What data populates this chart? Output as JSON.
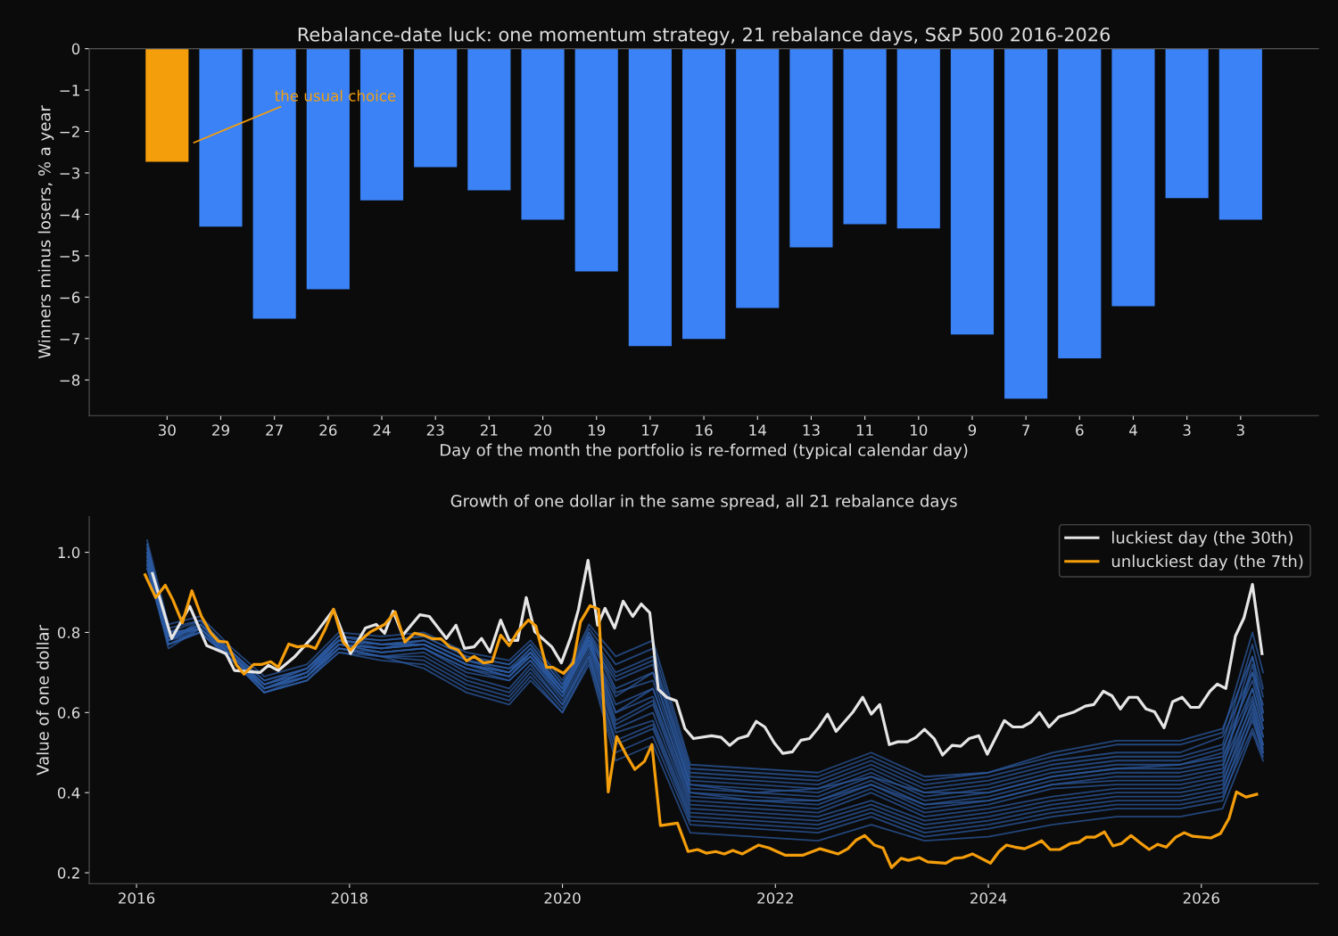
{
  "chart_data": [
    {
      "type": "bar",
      "title": "Rebalance-date luck: one momentum strategy, 21 rebalance days, S&P 500 2016-2026",
      "xlabel": "Day of the month the portfolio is re-formed (typical calendar day)",
      "ylabel": "Winners minus losers, % a year",
      "categories": [
        "30",
        "29",
        "27",
        "26",
        "24",
        "23",
        "21",
        "20",
        "19",
        "17",
        "16",
        "14",
        "13",
        "11",
        "10",
        "9",
        "7",
        "6",
        "4",
        "3",
        "3"
      ],
      "values": [
        -2.73,
        -4.3,
        -6.52,
        -5.81,
        -3.66,
        -2.86,
        -3.42,
        -4.13,
        -5.38,
        -7.18,
        -7.01,
        -6.26,
        -4.8,
        -4.24,
        -4.34,
        -6.9,
        -8.45,
        -7.48,
        -6.22,
        -3.61,
        -4.13
      ],
      "colors": [
        "#f59e0b",
        "#3b82f6",
        "#3b82f6",
        "#3b82f6",
        "#3b82f6",
        "#3b82f6",
        "#3b82f6",
        "#3b82f6",
        "#3b82f6",
        "#3b82f6",
        "#3b82f6",
        "#3b82f6",
        "#3b82f6",
        "#3b82f6",
        "#3b82f6",
        "#3b82f6",
        "#3b82f6",
        "#3b82f6",
        "#3b82f6",
        "#3b82f6",
        "#3b82f6"
      ],
      "ylim": [
        -8.86,
        0
      ],
      "yticks": [
        0,
        {
          "value": -1,
          "label": "−1"
        },
        {
          "value": -2,
          "label": "−2"
        },
        {
          "value": -3,
          "label": "−3"
        },
        {
          "value": -4,
          "label": "−4"
        },
        {
          "value": -5,
          "label": "−5"
        },
        {
          "value": -6,
          "label": "−6"
        },
        {
          "value": -7,
          "label": "−7"
        },
        {
          "value": -8,
          "label": "−8"
        }
      ],
      "annotations": [
        "the usual choice"
      ],
      "grid": false,
      "legend": false
    },
    {
      "type": "line",
      "title": "Growth of one dollar in the same spread, all 21 rebalance days",
      "ylabel": "Value of one dollar",
      "xlim": [
        2015.556,
        2027.1
      ],
      "xticks": [
        2016,
        2018,
        2020,
        2022,
        2024,
        2026
      ],
      "ylim": [
        0.173,
        1.089
      ],
      "yticks": [
        0.2,
        0.4,
        0.6,
        0.8,
        {
          "value": 1,
          "label": "1.0"
        }
      ],
      "grid": false,
      "legend": "top right",
      "x": [
        2016.1,
        2016.3,
        2016.6,
        2016.9,
        2017.2,
        2017.6,
        2017.9,
        2018.3,
        2018.7,
        2019.1,
        2019.5,
        2019.7,
        2020.0,
        2020.25,
        2020.5,
        2020.85,
        2021.2,
        2021.8,
        2022.4,
        2022.9,
        2023.4,
        2024.0,
        2024.6,
        2025.2,
        2025.8,
        2026.2,
        2026.48,
        2026.58
      ],
      "series": [
        {
          "color": "#2c5aa0",
          "values": [
            1.03,
            0.82,
            0.84,
            0.76,
            0.69,
            0.72,
            0.8,
            0.79,
            0.8,
            0.75,
            0.73,
            0.78,
            0.68,
            0.82,
            0.74,
            0.78,
            0.47,
            0.46,
            0.45,
            0.5,
            0.44,
            0.45,
            0.5,
            0.53,
            0.53,
            0.56,
            0.74,
            0.64
          ]
        },
        {
          "color": "#2c5aa0",
          "values": [
            1.01,
            0.81,
            0.83,
            0.75,
            0.68,
            0.71,
            0.79,
            0.78,
            0.79,
            0.74,
            0.72,
            0.77,
            0.67,
            0.81,
            0.72,
            0.76,
            0.46,
            0.45,
            0.44,
            0.49,
            0.43,
            0.45,
            0.49,
            0.52,
            0.52,
            0.55,
            0.8,
            0.7
          ]
        },
        {
          "color": "#2c5aa0",
          "values": [
            0.99,
            0.79,
            0.82,
            0.74,
            0.67,
            0.7,
            0.78,
            0.77,
            0.78,
            0.73,
            0.71,
            0.76,
            0.66,
            0.8,
            0.7,
            0.74,
            0.45,
            0.44,
            0.43,
            0.48,
            0.42,
            0.44,
            0.48,
            0.5,
            0.5,
            0.54,
            0.7,
            0.62
          ]
        },
        {
          "color": "#2c5aa0",
          "values": [
            1.02,
            0.8,
            0.81,
            0.73,
            0.66,
            0.69,
            0.77,
            0.76,
            0.77,
            0.72,
            0.7,
            0.75,
            0.65,
            0.79,
            0.69,
            0.73,
            0.44,
            0.43,
            0.42,
            0.47,
            0.41,
            0.43,
            0.47,
            0.49,
            0.49,
            0.52,
            0.77,
            0.66
          ]
        },
        {
          "color": "#2c5aa0",
          "values": [
            0.98,
            0.78,
            0.83,
            0.75,
            0.66,
            0.7,
            0.79,
            0.78,
            0.79,
            0.74,
            0.72,
            0.77,
            0.67,
            0.78,
            0.68,
            0.72,
            0.43,
            0.42,
            0.41,
            0.46,
            0.4,
            0.42,
            0.46,
            0.48,
            0.48,
            0.51,
            0.68,
            0.58
          ]
        },
        {
          "color": "#2c5aa0",
          "values": [
            1.0,
            0.79,
            0.81,
            0.74,
            0.67,
            0.71,
            0.78,
            0.77,
            0.77,
            0.72,
            0.7,
            0.75,
            0.66,
            0.8,
            0.66,
            0.7,
            0.42,
            0.41,
            0.4,
            0.45,
            0.39,
            0.41,
            0.45,
            0.47,
            0.47,
            0.5,
            0.74,
            0.6
          ]
        },
        {
          "color": "#2c5aa0",
          "values": [
            0.97,
            0.77,
            0.8,
            0.73,
            0.66,
            0.7,
            0.77,
            0.76,
            0.78,
            0.73,
            0.71,
            0.74,
            0.65,
            0.77,
            0.64,
            0.7,
            0.42,
            0.4,
            0.41,
            0.44,
            0.4,
            0.4,
            0.44,
            0.46,
            0.47,
            0.49,
            0.66,
            0.56
          ]
        },
        {
          "color": "#2c5aa0",
          "values": [
            0.99,
            0.78,
            0.82,
            0.75,
            0.68,
            0.71,
            0.79,
            0.77,
            0.78,
            0.73,
            0.7,
            0.76,
            0.66,
            0.79,
            0.65,
            0.68,
            0.41,
            0.4,
            0.39,
            0.44,
            0.38,
            0.4,
            0.44,
            0.46,
            0.46,
            0.48,
            0.7,
            0.58
          ]
        },
        {
          "color": "#2c5aa0",
          "values": [
            1.01,
            0.8,
            0.83,
            0.74,
            0.67,
            0.7,
            0.78,
            0.76,
            0.77,
            0.72,
            0.69,
            0.75,
            0.65,
            0.78,
            0.62,
            0.66,
            0.4,
            0.39,
            0.38,
            0.43,
            0.37,
            0.39,
            0.43,
            0.45,
            0.45,
            0.47,
            0.64,
            0.54
          ]
        },
        {
          "color": "#2c5aa0",
          "values": [
            0.96,
            0.77,
            0.81,
            0.74,
            0.66,
            0.69,
            0.77,
            0.75,
            0.76,
            0.71,
            0.69,
            0.74,
            0.64,
            0.77,
            0.6,
            0.66,
            0.4,
            0.38,
            0.38,
            0.42,
            0.37,
            0.38,
            0.42,
            0.44,
            0.44,
            0.46,
            0.72,
            0.6
          ]
        },
        {
          "color": "#2c5aa0",
          "values": [
            0.98,
            0.79,
            0.82,
            0.75,
            0.67,
            0.71,
            0.78,
            0.77,
            0.77,
            0.72,
            0.7,
            0.75,
            0.66,
            0.79,
            0.6,
            0.64,
            0.39,
            0.38,
            0.37,
            0.42,
            0.36,
            0.38,
            0.42,
            0.43,
            0.43,
            0.45,
            0.62,
            0.52
          ]
        },
        {
          "color": "#2c5aa0",
          "values": [
            1.0,
            0.78,
            0.8,
            0.73,
            0.65,
            0.69,
            0.76,
            0.75,
            0.76,
            0.71,
            0.68,
            0.73,
            0.64,
            0.78,
            0.58,
            0.63,
            0.38,
            0.37,
            0.36,
            0.41,
            0.35,
            0.37,
            0.41,
            0.42,
            0.42,
            0.44,
            0.66,
            0.56
          ]
        },
        {
          "color": "#2c5aa0",
          "values": [
            0.97,
            0.76,
            0.81,
            0.74,
            0.66,
            0.7,
            0.77,
            0.76,
            0.77,
            0.72,
            0.69,
            0.74,
            0.65,
            0.77,
            0.57,
            0.62,
            0.37,
            0.36,
            0.35,
            0.4,
            0.34,
            0.36,
            0.39,
            0.41,
            0.41,
            0.43,
            0.6,
            0.51
          ]
        },
        {
          "color": "#2c5aa0",
          "values": [
            0.99,
            0.78,
            0.82,
            0.74,
            0.66,
            0.69,
            0.77,
            0.75,
            0.76,
            0.7,
            0.68,
            0.73,
            0.63,
            0.76,
            0.56,
            0.6,
            0.36,
            0.35,
            0.34,
            0.38,
            0.33,
            0.35,
            0.38,
            0.4,
            0.4,
            0.42,
            0.63,
            0.54
          ]
        },
        {
          "color": "#2c5aa0",
          "values": [
            1.02,
            0.8,
            0.81,
            0.73,
            0.65,
            0.68,
            0.76,
            0.74,
            0.75,
            0.69,
            0.66,
            0.72,
            0.62,
            0.75,
            0.55,
            0.58,
            0.35,
            0.34,
            0.33,
            0.37,
            0.32,
            0.34,
            0.37,
            0.39,
            0.39,
            0.41,
            0.58,
            0.5
          ]
        },
        {
          "color": "#2c5aa0",
          "values": [
            0.96,
            0.77,
            0.8,
            0.73,
            0.65,
            0.68,
            0.75,
            0.74,
            0.74,
            0.68,
            0.65,
            0.71,
            0.62,
            0.74,
            0.53,
            0.57,
            0.34,
            0.33,
            0.32,
            0.36,
            0.31,
            0.33,
            0.36,
            0.38,
            0.38,
            0.4,
            0.61,
            0.52
          ]
        },
        {
          "color": "#2c5aa0",
          "values": [
            0.98,
            0.78,
            0.81,
            0.74,
            0.66,
            0.69,
            0.76,
            0.74,
            0.73,
            0.67,
            0.64,
            0.7,
            0.61,
            0.74,
            0.52,
            0.56,
            0.33,
            0.32,
            0.31,
            0.35,
            0.3,
            0.32,
            0.35,
            0.37,
            0.37,
            0.39,
            0.56,
            0.49
          ]
        },
        {
          "color": "#2c5aa0",
          "values": [
            0.97,
            0.77,
            0.8,
            0.73,
            0.65,
            0.68,
            0.75,
            0.73,
            0.72,
            0.66,
            0.63,
            0.69,
            0.6,
            0.73,
            0.5,
            0.54,
            0.32,
            0.31,
            0.3,
            0.34,
            0.29,
            0.31,
            0.34,
            0.36,
            0.36,
            0.38,
            0.59,
            0.5
          ]
        },
        {
          "color": "#2c5aa0",
          "values": [
            1.0,
            0.79,
            0.81,
            0.73,
            0.66,
            0.69,
            0.76,
            0.74,
            0.71,
            0.65,
            0.62,
            0.68,
            0.6,
            0.72,
            0.48,
            0.52,
            0.3,
            0.29,
            0.28,
            0.32,
            0.28,
            0.29,
            0.32,
            0.34,
            0.34,
            0.36,
            0.55,
            0.48
          ]
        },
        {
          "name": "luckiest day (the 30th)",
          "color": "#e6e6e6",
          "x": [
            2016.15,
            2016.33,
            2016.5,
            2016.66,
            2016.84,
            2016.92,
            2017.16,
            2017.24,
            2017.33,
            2017.48,
            2017.67,
            2017.85,
            2018.01,
            2018.15,
            2018.25,
            2018.33,
            2018.41,
            2018.5,
            2018.66,
            2018.75,
            2018.91,
            2019.0,
            2019.08,
            2019.17,
            2019.24,
            2019.32,
            2019.42,
            2019.5,
            2019.58,
            2019.66,
            2019.74,
            2019.9,
            2019.99,
            2020.08,
            2020.15,
            2020.24,
            2020.33,
            2020.4,
            2020.49,
            2020.57,
            2020.66,
            2020.74,
            2020.82,
            2020.9,
            2020.98,
            2021.07,
            2021.15,
            2021.23,
            2021.4,
            2021.49,
            2021.57,
            2021.65,
            2021.74,
            2021.82,
            2021.9,
            2021.99,
            2022.07,
            2022.16,
            2022.24,
            2022.32,
            2022.41,
            2022.49,
            2022.57,
            2022.73,
            2022.82,
            2022.9,
            2022.98,
            2023.07,
            2023.15,
            2023.24,
            2023.32,
            2023.4,
            2023.49,
            2023.57,
            2023.66,
            2023.74,
            2023.82,
            2023.91,
            2023.99,
            2024.15,
            2024.23,
            2024.32,
            2024.4,
            2024.48,
            2024.57,
            2024.66,
            2024.81,
            2024.91,
            2024.99,
            2025.08,
            2025.16,
            2025.24,
            2025.32,
            2025.4,
            2025.48,
            2025.56,
            2025.65,
            2025.73,
            2025.82,
            2025.9,
            2025.98,
            2026.08,
            2026.15,
            2026.23,
            2026.32,
            2026.4,
            2026.48,
            2026.57
          ],
          "values": [
            0.947,
            0.785,
            0.865,
            0.767,
            0.747,
            0.705,
            0.7,
            0.718,
            0.705,
            0.738,
            0.793,
            0.857,
            0.747,
            0.811,
            0.82,
            0.798,
            0.853,
            0.793,
            0.844,
            0.84,
            0.785,
            0.818,
            0.76,
            0.764,
            0.785,
            0.751,
            0.831,
            0.78,
            0.78,
            0.887,
            0.802,
            0.764,
            0.724,
            0.789,
            0.857,
            0.98,
            0.818,
            0.86,
            0.811,
            0.878,
            0.84,
            0.871,
            0.849,
            0.658,
            0.638,
            0.629,
            0.56,
            0.535,
            0.542,
            0.538,
            0.518,
            0.535,
            0.542,
            0.578,
            0.564,
            0.524,
            0.498,
            0.502,
            0.531,
            0.535,
            0.564,
            0.596,
            0.553,
            0.602,
            0.638,
            0.596,
            0.62,
            0.52,
            0.527,
            0.527,
            0.538,
            0.558,
            0.535,
            0.494,
            0.518,
            0.516,
            0.535,
            0.542,
            0.496,
            0.58,
            0.564,
            0.564,
            0.576,
            0.6,
            0.564,
            0.589,
            0.602,
            0.616,
            0.62,
            0.653,
            0.642,
            0.609,
            0.638,
            0.638,
            0.609,
            0.602,
            0.562,
            0.627,
            0.638,
            0.613,
            0.613,
            0.653,
            0.671,
            0.66,
            0.791,
            0.836,
            0.92,
            0.747
          ]
        },
        {
          "name": "unluckiest day (the 7th)",
          "color": "#f59e0b",
          "x": [
            2016.08,
            2016.18,
            2016.27,
            2016.34,
            2016.43,
            2016.52,
            2016.61,
            2016.7,
            2016.77,
            2016.85,
            2016.94,
            2017.01,
            2017.1,
            2017.17,
            2017.26,
            2017.33,
            2017.43,
            2017.51,
            2017.61,
            2017.68,
            2017.77,
            2017.85,
            2017.94,
            2018.01,
            2018.1,
            2018.2,
            2018.33,
            2018.43,
            2018.52,
            2018.61,
            2018.7,
            2018.78,
            2018.86,
            2018.94,
            2019.02,
            2019.1,
            2019.17,
            2019.26,
            2019.34,
            2019.42,
            2019.5,
            2019.58,
            2019.68,
            2019.75,
            2019.85,
            2019.91,
            2020.01,
            2020.1,
            2020.17,
            2020.26,
            2020.34,
            2020.43,
            2020.51,
            2020.6,
            2020.68,
            2020.77,
            2020.84,
            2020.92,
            2021.08,
            2021.18,
            2021.27,
            2021.35,
            2021.44,
            2021.52,
            2021.6,
            2021.69,
            2021.84,
            2021.94,
            2022.09,
            2022.26,
            2022.42,
            2022.59,
            2022.68,
            2022.76,
            2022.84,
            2022.93,
            2023.01,
            2023.09,
            2023.18,
            2023.25,
            2023.35,
            2023.43,
            2023.6,
            2023.68,
            2023.76,
            2023.85,
            2024.02,
            2024.1,
            2024.17,
            2024.25,
            2024.34,
            2024.42,
            2024.5,
            2024.58,
            2024.67,
            2024.77,
            2024.85,
            2024.92,
            2025.0,
            2025.09,
            2025.17,
            2025.25,
            2025.34,
            2025.42,
            2025.51,
            2025.59,
            2025.67,
            2025.76,
            2025.84,
            2025.92,
            2026.09,
            2026.18,
            2026.26,
            2026.33,
            2026.42,
            2026.52
          ],
          "values": [
            0.944,
            0.887,
            0.918,
            0.882,
            0.824,
            0.904,
            0.84,
            0.798,
            0.778,
            0.776,
            0.718,
            0.696,
            0.72,
            0.72,
            0.727,
            0.713,
            0.771,
            0.764,
            0.767,
            0.76,
            0.807,
            0.858,
            0.776,
            0.756,
            0.78,
            0.802,
            0.82,
            0.851,
            0.776,
            0.798,
            0.793,
            0.784,
            0.784,
            0.764,
            0.756,
            0.729,
            0.74,
            0.724,
            0.727,
            0.793,
            0.767,
            0.802,
            0.831,
            0.816,
            0.713,
            0.713,
            0.698,
            0.724,
            0.827,
            0.867,
            0.858,
            0.402,
            0.54,
            0.494,
            0.458,
            0.478,
            0.52,
            0.318,
            0.324,
            0.253,
            0.258,
            0.249,
            0.253,
            0.247,
            0.256,
            0.247,
            0.269,
            0.262,
            0.244,
            0.244,
            0.26,
            0.247,
            0.26,
            0.282,
            0.293,
            0.269,
            0.262,
            0.213,
            0.236,
            0.231,
            0.238,
            0.227,
            0.224,
            0.236,
            0.238,
            0.247,
            0.224,
            0.253,
            0.269,
            0.264,
            0.26,
            0.269,
            0.28,
            0.258,
            0.258,
            0.273,
            0.276,
            0.289,
            0.289,
            0.302,
            0.267,
            0.273,
            0.293,
            0.276,
            0.258,
            0.271,
            0.264,
            0.289,
            0.3,
            0.291,
            0.287,
            0.298,
            0.336,
            0.402,
            0.389,
            0.396
          ]
        }
      ]
    }
  ]
}
